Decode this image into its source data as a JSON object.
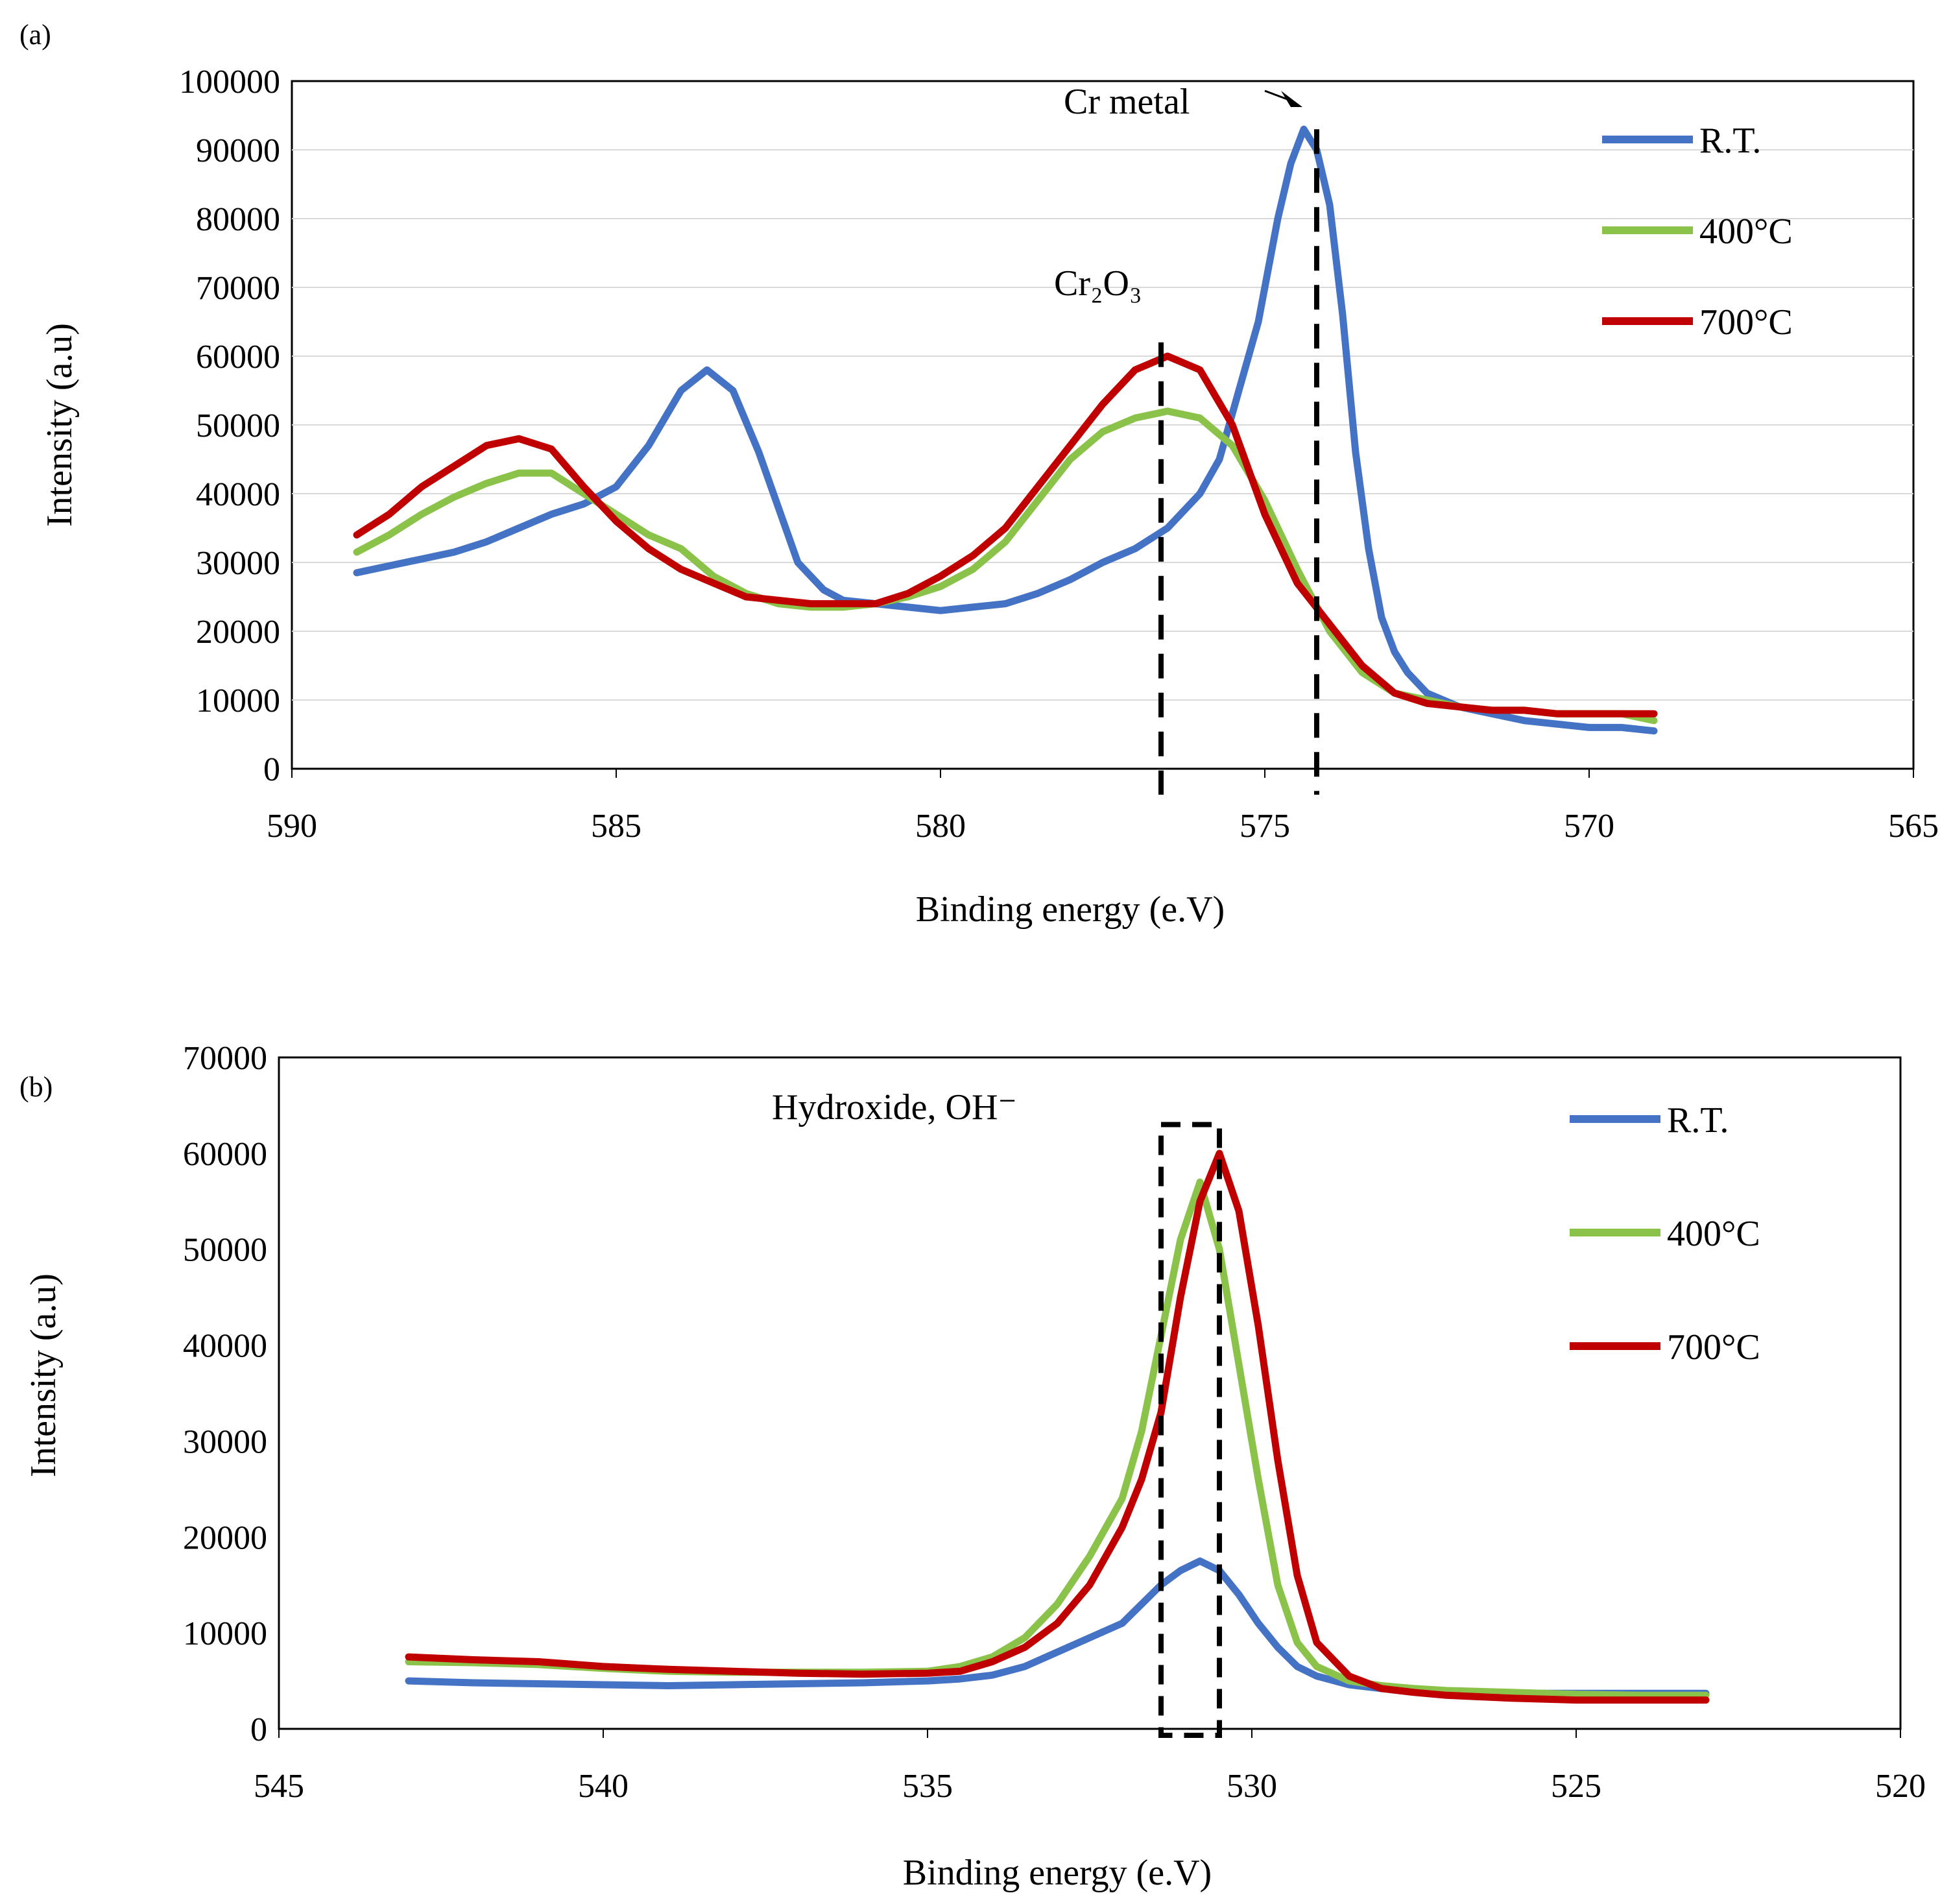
{
  "panels": [
    {
      "label": "(a)",
      "annotations": {
        "peak1": "Cr metal",
        "peak2": "Cr₂O₃"
      }
    },
    {
      "label": "(b)",
      "annotations": {
        "peak1": "Hydroxide,  OH⁻"
      }
    }
  ],
  "colors": {
    "rt": "#4472C4",
    "c400": "#8BC34A",
    "c700": "#C00000",
    "axis": "#000000",
    "grid": "#D9D9D9"
  },
  "chart_data": [
    {
      "type": "line",
      "panel": "(a)",
      "title": "",
      "xlabel": "Binding energy (e.V)",
      "ylabel": "Intensity (a.u)",
      "xlim": [
        590,
        565
      ],
      "ylim": [
        0,
        100000
      ],
      "x_ticks": [
        "590",
        "585",
        "580",
        "575",
        "570",
        "565"
      ],
      "y_ticks": [
        "0",
        "10000",
        "20000",
        "30000",
        "40000",
        "50000",
        "60000",
        "70000",
        "80000",
        "90000",
        "100000"
      ],
      "grid": true,
      "legend_position": "top-right",
      "reference_lines": [
        {
          "label": "Cr₂O₃",
          "x": 576.6,
          "y_top": 62000
        },
        {
          "label": "Cr metal",
          "x": 574.2,
          "y_top": 93000
        }
      ],
      "series": [
        {
          "name": "R.T.",
          "x": [
            589,
            588.5,
            588,
            587.5,
            587,
            586.5,
            586,
            585.5,
            585,
            584.5,
            584,
            583.6,
            583.2,
            582.8,
            582.5,
            582.2,
            581.8,
            581.5,
            581,
            580.5,
            580,
            579.5,
            579,
            578.5,
            578,
            577.5,
            577,
            576.5,
            576,
            575.7,
            575.4,
            575.1,
            574.8,
            574.6,
            574.4,
            574.2,
            574,
            573.8,
            573.6,
            573.4,
            573.2,
            573,
            572.8,
            572.5,
            572,
            571.5,
            571,
            570.5,
            570,
            569.5,
            569
          ],
          "values": [
            28500,
            29500,
            30500,
            31500,
            33000,
            35000,
            37000,
            38500,
            41000,
            47000,
            55000,
            58000,
            55000,
            46000,
            38000,
            30000,
            26000,
            24500,
            24000,
            23500,
            23000,
            23500,
            24000,
            25500,
            27500,
            30000,
            32000,
            35000,
            40000,
            45000,
            55000,
            65000,
            80000,
            88000,
            93000,
            90000,
            82000,
            66000,
            46000,
            32000,
            22000,
            17000,
            14000,
            11000,
            9000,
            8000,
            7000,
            6500,
            6000,
            6000,
            5500
          ]
        },
        {
          "name": "400°C",
          "x": [
            589,
            588.5,
            588,
            587.5,
            587,
            586.5,
            586,
            585.5,
            585,
            584.5,
            584,
            583.5,
            583,
            582.5,
            582,
            581.5,
            581,
            580.5,
            580,
            579.5,
            579,
            578.5,
            578,
            577.5,
            577,
            576.5,
            576,
            575.5,
            575,
            574.5,
            574,
            573.5,
            573,
            572.5,
            572,
            571.5,
            571,
            570.5,
            570,
            569.5,
            569
          ],
          "values": [
            31500,
            34000,
            37000,
            39500,
            41500,
            43000,
            43000,
            40000,
            37000,
            34000,
            32000,
            28000,
            25500,
            24000,
            23500,
            23500,
            24000,
            25000,
            26500,
            29000,
            33000,
            39000,
            45000,
            49000,
            51000,
            52000,
            51000,
            47000,
            39000,
            29000,
            20000,
            14000,
            11000,
            10000,
            9000,
            8500,
            8500,
            8000,
            8000,
            8000,
            7000
          ]
        },
        {
          "name": "700°C",
          "x": [
            589,
            588.5,
            588,
            587.5,
            587,
            586.5,
            586,
            585.5,
            585,
            584.5,
            584,
            583.5,
            583,
            582.5,
            582,
            581.5,
            581,
            580.5,
            580,
            579.5,
            579,
            578.5,
            578,
            577.5,
            577,
            576.5,
            576,
            575.5,
            575,
            574.5,
            574,
            573.5,
            573,
            572.5,
            572,
            571.5,
            571,
            570.5,
            570,
            569.5,
            569
          ],
          "values": [
            34000,
            37000,
            41000,
            44000,
            47000,
            48000,
            46500,
            41000,
            36000,
            32000,
            29000,
            27000,
            25000,
            24500,
            24000,
            24000,
            24000,
            25500,
            28000,
            31000,
            35000,
            41000,
            47000,
            53000,
            58000,
            60000,
            58000,
            50000,
            37000,
            27000,
            21000,
            15000,
            11000,
            9500,
            9000,
            8500,
            8500,
            8000,
            8000,
            8000,
            8000
          ]
        }
      ]
    },
    {
      "type": "line",
      "panel": "(b)",
      "title": "",
      "xlabel": "Binding energy (e.V)",
      "ylabel": "Intensity (a.u)",
      "xlim": [
        545,
        520
      ],
      "ylim": [
        0,
        70000
      ],
      "x_ticks": [
        "545",
        "540",
        "535",
        "530",
        "525",
        "520"
      ],
      "y_ticks": [
        "0",
        "10000",
        "20000",
        "30000",
        "40000",
        "50000",
        "60000",
        "70000"
      ],
      "grid": false,
      "legend_position": "top-right",
      "reference_box": {
        "label": "Hydroxide,  OH⁻",
        "x_range": [
          531.4,
          530.5
        ],
        "y_range": [
          0,
          63000
        ]
      },
      "series": [
        {
          "name": "R.T.",
          "x": [
            543,
            542,
            541,
            540,
            539,
            538,
            537,
            536,
            535,
            534.5,
            534,
            533.5,
            533,
            532.5,
            532,
            531.7,
            531.4,
            531.1,
            530.8,
            530.5,
            530.2,
            529.9,
            529.6,
            529.3,
            529,
            528.5,
            528,
            527.5,
            527,
            526,
            525,
            524,
            523
          ],
          "values": [
            5000,
            4800,
            4700,
            4600,
            4500,
            4600,
            4700,
            4800,
            5000,
            5200,
            5600,
            6500,
            8000,
            9500,
            11000,
            13000,
            15000,
            16500,
            17500,
            16500,
            14000,
            11000,
            8500,
            6500,
            5500,
            4600,
            4200,
            4000,
            3800,
            3700,
            3700,
            3700,
            3700
          ]
        },
        {
          "name": "400°C",
          "x": [
            543,
            542,
            541,
            540,
            539,
            538,
            537,
            536,
            535,
            534.5,
            534,
            533.5,
            533,
            532.5,
            532,
            531.7,
            531.4,
            531.1,
            530.8,
            530.5,
            530.2,
            529.9,
            529.6,
            529.3,
            529,
            528.5,
            528,
            527.5,
            527,
            526,
            525,
            524,
            523
          ],
          "values": [
            7000,
            6900,
            6700,
            6300,
            6000,
            5900,
            5900,
            5900,
            6000,
            6500,
            7500,
            9500,
            13000,
            18000,
            24000,
            31000,
            41000,
            51000,
            57000,
            50000,
            38000,
            26000,
            15000,
            9000,
            6500,
            5000,
            4500,
            4200,
            4000,
            3800,
            3600,
            3500,
            3500
          ]
        },
        {
          "name": "700°C",
          "x": [
            543,
            542,
            541,
            540,
            539,
            538,
            537,
            536,
            535,
            534.5,
            534,
            533.5,
            533,
            532.5,
            532,
            531.7,
            531.4,
            531.1,
            530.8,
            530.5,
            530.2,
            529.9,
            529.6,
            529.3,
            529,
            528.5,
            528,
            527.5,
            527,
            526,
            525,
            524,
            523
          ],
          "values": [
            7500,
            7200,
            7000,
            6500,
            6200,
            6000,
            5800,
            5700,
            5800,
            6000,
            7000,
            8500,
            11000,
            15000,
            21000,
            26000,
            33000,
            45000,
            55000,
            60000,
            54000,
            42000,
            28000,
            16000,
            9000,
            5500,
            4200,
            3800,
            3500,
            3200,
            3000,
            3000,
            3000
          ]
        }
      ]
    }
  ]
}
